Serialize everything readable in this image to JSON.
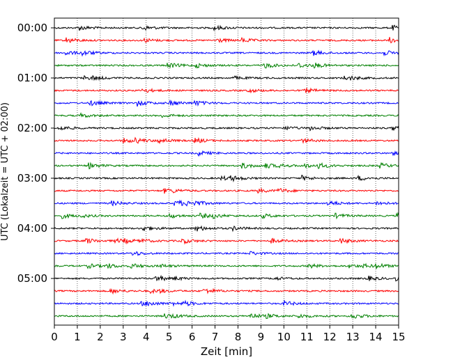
{
  "chart_data": {
    "type": "line",
    "subtype": "helicorder",
    "title": "",
    "xlabel": "Zeit  [min]",
    "ylabel": "UTC (Lokalzeit = UTC + 02:00)",
    "xlim": [
      0,
      15
    ],
    "x_ticks": [
      "0",
      "1",
      "2",
      "3",
      "4",
      "5",
      "6",
      "7",
      "8",
      "9",
      "10",
      "11",
      "12",
      "13",
      "14",
      "15"
    ],
    "y_tick_labels": [
      "00:00",
      "01:00",
      "02:00",
      "03:00",
      "04:00",
      "05:00"
    ],
    "traces_per_hour": 4,
    "trace_count": 24,
    "trace_colors": [
      "#000000",
      "#ff0000",
      "#0000ff",
      "#008000"
    ],
    "grid": "vertical-dotted"
  }
}
